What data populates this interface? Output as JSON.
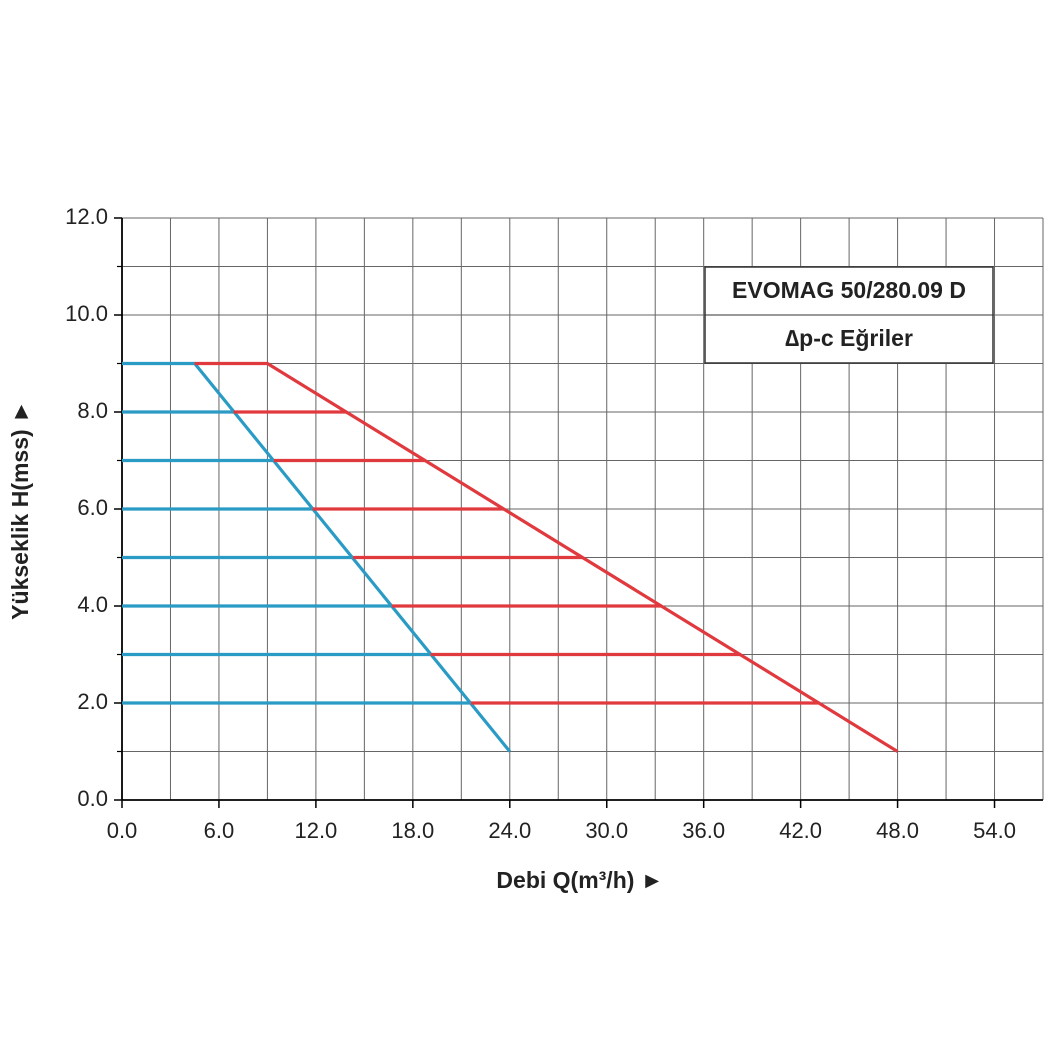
{
  "chart_data": {
    "type": "line",
    "title": "EVOMAG 50/280.09 D",
    "subtitle": "∆p-c Eğriler",
    "xlabel": "Debi Q(m³/h) ►",
    "ylabel": "Yükseklik H(mss) ►",
    "xlim": [
      0,
      57
    ],
    "ylim": [
      0,
      12
    ],
    "xticks": [
      {
        "value": 0,
        "label": "0.0"
      },
      {
        "value": 6,
        "label": "6.0"
      },
      {
        "value": 12,
        "label": "12.0"
      },
      {
        "value": 18,
        "label": "18.0"
      },
      {
        "value": 24,
        "label": "24.0"
      },
      {
        "value": 30,
        "label": "30.0"
      },
      {
        "value": 36,
        "label": "36.0"
      },
      {
        "value": 42,
        "label": "42.0"
      },
      {
        "value": 48,
        "label": "48.0"
      },
      {
        "value": 54,
        "label": "54.0"
      }
    ],
    "yticks": [
      {
        "value": 0,
        "label": "0.0"
      },
      {
        "value": 2,
        "label": "2.0"
      },
      {
        "value": 4,
        "label": "4.0"
      },
      {
        "value": 6,
        "label": "6.0"
      },
      {
        "value": 8,
        "label": "8.0"
      },
      {
        "value": 10,
        "label": "10.0"
      },
      {
        "value": 12,
        "label": "12.0"
      }
    ],
    "x_minor_ticks": [
      3,
      9,
      15,
      21,
      27,
      33,
      39,
      45,
      51,
      57
    ],
    "y_minor_ticks": [
      1,
      3,
      5,
      7,
      9,
      11
    ],
    "grid": true,
    "series": [
      {
        "color": "#2a9bc4",
        "x": [
          0,
          4.5,
          24
        ],
        "values": [
          9,
          9,
          1
        ]
      },
      {
        "color": "#e0393e",
        "x": [
          4.5,
          9,
          48
        ],
        "values": [
          9,
          9,
          1
        ]
      },
      {
        "color": "#2a9bc4",
        "x": [
          0,
          6.9
        ],
        "values": [
          8,
          8
        ]
      },
      {
        "color": "#e0393e",
        "x": [
          6.9,
          13.9
        ],
        "values": [
          8,
          8
        ]
      },
      {
        "color": "#2a9bc4",
        "x": [
          0,
          9.4
        ],
        "values": [
          7,
          7
        ]
      },
      {
        "color": "#e0393e",
        "x": [
          9.4,
          18.8
        ],
        "values": [
          7,
          7
        ]
      },
      {
        "color": "#2a9bc4",
        "x": [
          0,
          11.8
        ],
        "values": [
          6,
          6
        ]
      },
      {
        "color": "#e0393e",
        "x": [
          11.8,
          23.6
        ],
        "values": [
          6,
          6
        ]
      },
      {
        "color": "#2a9bc4",
        "x": [
          0,
          14.3
        ],
        "values": [
          5,
          5
        ]
      },
      {
        "color": "#e0393e",
        "x": [
          14.3,
          28.5
        ],
        "values": [
          5,
          5
        ]
      },
      {
        "color": "#2a9bc4",
        "x": [
          0,
          16.7
        ],
        "values": [
          4,
          4
        ]
      },
      {
        "color": "#e0393e",
        "x": [
          16.7,
          33.4
        ],
        "values": [
          4,
          4
        ]
      },
      {
        "color": "#2a9bc4",
        "x": [
          0,
          19.1
        ],
        "values": [
          3,
          3
        ]
      },
      {
        "color": "#e0393e",
        "x": [
          19.1,
          38.3
        ],
        "values": [
          3,
          3
        ]
      },
      {
        "color": "#2a9bc4",
        "x": [
          0,
          21.6
        ],
        "values": [
          2,
          2
        ]
      },
      {
        "color": "#e0393e",
        "x": [
          21.6,
          43.1
        ],
        "values": [
          2,
          2
        ]
      }
    ]
  }
}
